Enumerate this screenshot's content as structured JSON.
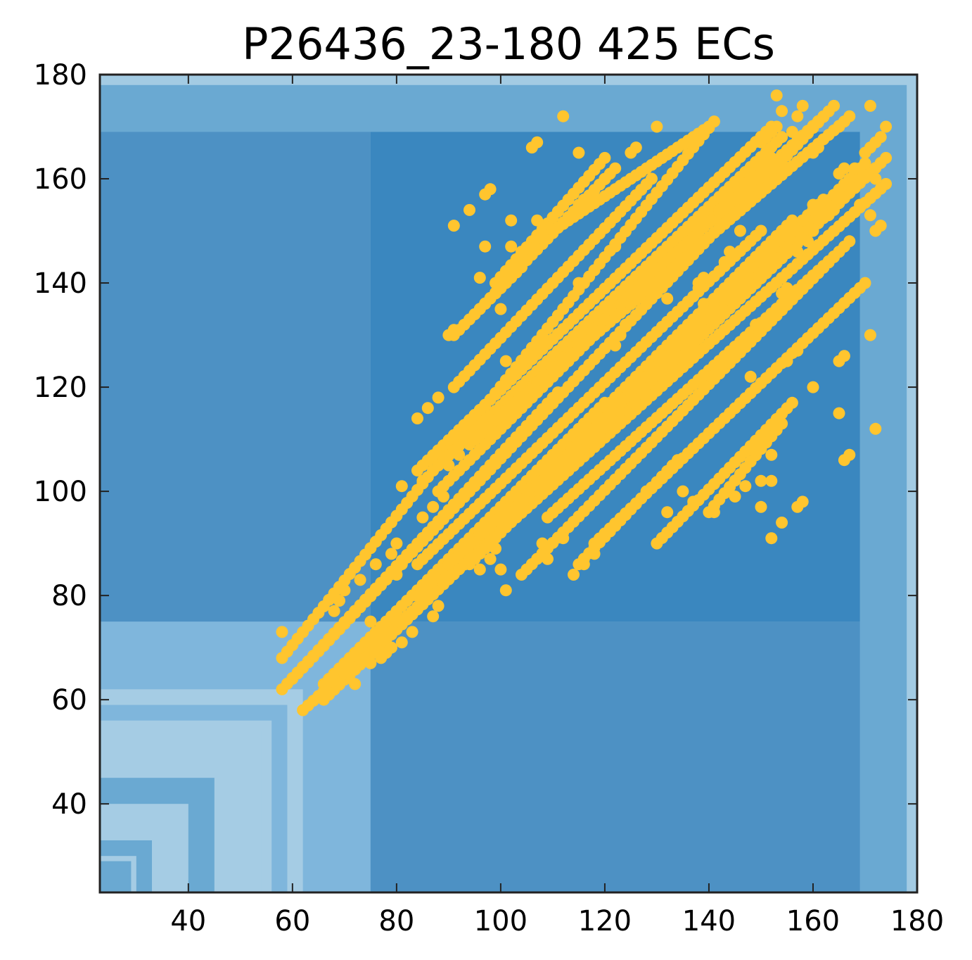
{
  "chart_data": {
    "type": "scatter",
    "title": "P26436_23-180 425 ECs",
    "xlabel": "",
    "ylabel": "",
    "xlim": [
      23,
      180
    ],
    "ylim": [
      23,
      180
    ],
    "xticks": [
      40,
      60,
      80,
      100,
      120,
      140,
      160,
      180
    ],
    "yticks": [
      40,
      60,
      80,
      100,
      120,
      140,
      160,
      180
    ],
    "grid": false,
    "colors": {
      "points": "#ffc52e",
      "frame": "#222222"
    },
    "domains_background": {
      "description_free": true,
      "nested_squares": [
        {
          "lo": 23,
          "hi": 180,
          "color": "#a3cbe3"
        },
        {
          "lo": 23,
          "hi": 178,
          "color": "#6aa9d2"
        },
        {
          "lo": 23,
          "hi": 169,
          "color": "#6aa9d2"
        },
        {
          "lo": 23,
          "hi": 75,
          "color": "#7fb6dc"
        },
        {
          "lo": 23,
          "hi": 62,
          "color": "#a5cce4"
        },
        {
          "lo": 23,
          "hi": 59,
          "color": "#7fb6dc"
        },
        {
          "lo": 23,
          "hi": 56,
          "color": "#a5cce4"
        },
        {
          "lo": 23,
          "hi": 54,
          "color": "#a5cce4"
        },
        {
          "lo": 23,
          "hi": 45,
          "color": "#6aa9d2"
        },
        {
          "lo": 23,
          "hi": 40,
          "color": "#a5cce4"
        },
        {
          "lo": 23,
          "hi": 33,
          "color": "#6aa9d2"
        },
        {
          "lo": 23,
          "hi": 30,
          "color": "#a5cce4"
        },
        {
          "lo": 23,
          "hi": 29,
          "color": "#6aa9d2"
        }
      ],
      "blocks": [
        {
          "x": [
            75,
            169
          ],
          "y": [
            75,
            169
          ],
          "color": "#3a87bf"
        },
        {
          "x": [
            23,
            75
          ],
          "y": [
            75,
            169
          ],
          "color": "#4d91c4"
        },
        {
          "x": [
            75,
            169
          ],
          "y": [
            23,
            75
          ],
          "color": "#4d91c4"
        }
      ]
    },
    "lines": [
      {
        "x0": 58,
        "y0": 68,
        "x1": 141,
        "y1": 171
      },
      {
        "x0": 60,
        "y0": 64,
        "x1": 164,
        "y1": 174
      },
      {
        "x0": 66,
        "y0": 60,
        "x1": 174,
        "y1": 164
      },
      {
        "x0": 58,
        "y0": 62,
        "x1": 111,
        "y1": 119
      },
      {
        "x0": 62,
        "y0": 58,
        "x1": 174,
        "y1": 159
      },
      {
        "x0": 66,
        "y0": 63,
        "x1": 120,
        "y1": 117
      },
      {
        "x0": 84,
        "y0": 104,
        "x1": 152,
        "y1": 170
      },
      {
        "x0": 87,
        "y0": 104,
        "x1": 154,
        "y1": 168
      },
      {
        "x0": 88,
        "y0": 100,
        "x1": 152,
        "y1": 164
      },
      {
        "x0": 94,
        "y0": 109,
        "x1": 162,
        "y1": 172
      },
      {
        "x0": 97,
        "y0": 112,
        "x1": 166,
        "y1": 171
      },
      {
        "x0": 91,
        "y0": 120,
        "x1": 129,
        "y1": 160
      },
      {
        "x0": 91,
        "y0": 130,
        "x1": 104,
        "y1": 143
      },
      {
        "x0": 95,
        "y0": 134,
        "x1": 122,
        "y1": 162
      },
      {
        "x0": 99,
        "y0": 140,
        "x1": 120,
        "y1": 164
      },
      {
        "x0": 104,
        "y0": 146,
        "x1": 140,
        "y1": 170
      },
      {
        "x0": 84,
        "y0": 80,
        "x1": 156,
        "y1": 152
      },
      {
        "x0": 84,
        "y0": 86,
        "x1": 150,
        "y1": 150
      },
      {
        "x0": 90,
        "y0": 86,
        "x1": 167,
        "y1": 158
      },
      {
        "x0": 94,
        "y0": 86,
        "x1": 170,
        "y1": 163
      },
      {
        "x0": 100,
        "y0": 94,
        "x1": 162,
        "y1": 156
      },
      {
        "x0": 104,
        "y0": 84,
        "x1": 167,
        "y1": 148
      },
      {
        "x0": 109,
        "y0": 95,
        "x1": 165,
        "y1": 146
      },
      {
        "x0": 118,
        "y0": 90,
        "x1": 170,
        "y1": 140
      },
      {
        "x0": 130,
        "y0": 90,
        "x1": 156,
        "y1": 117
      },
      {
        "x0": 115,
        "y0": 86,
        "x1": 134,
        "y1": 106
      },
      {
        "x0": 140,
        "y0": 96,
        "x1": 154,
        "y1": 113
      }
    ],
    "points": [
      [
        58,
        73
      ],
      [
        112,
        172
      ],
      [
        130,
        170
      ],
      [
        107,
        167
      ],
      [
        106,
        166
      ],
      [
        115,
        165
      ],
      [
        126,
        166
      ],
      [
        125,
        165
      ],
      [
        120,
        160
      ],
      [
        97,
        157
      ],
      [
        98,
        158
      ],
      [
        94,
        154
      ],
      [
        91,
        151
      ],
      [
        102,
        152
      ],
      [
        107,
        152
      ],
      [
        115,
        155
      ],
      [
        116,
        156
      ],
      [
        97,
        147
      ],
      [
        102,
        147
      ],
      [
        122,
        147
      ],
      [
        96,
        141
      ],
      [
        115,
        140
      ],
      [
        100,
        135
      ],
      [
        101,
        125
      ],
      [
        90,
        130
      ],
      [
        91,
        131
      ],
      [
        84,
        114
      ],
      [
        86,
        116
      ],
      [
        88,
        118
      ],
      [
        81,
        101
      ],
      [
        85,
        102
      ],
      [
        80,
        90
      ],
      [
        79,
        88
      ],
      [
        76,
        86
      ],
      [
        75,
        75
      ],
      [
        80,
        75
      ],
      [
        70,
        81
      ],
      [
        73,
        83
      ],
      [
        68,
        77
      ],
      [
        69,
        79
      ],
      [
        70,
        65
      ],
      [
        72,
        63
      ],
      [
        75,
        67
      ],
      [
        77,
        68
      ],
      [
        78,
        69
      ],
      [
        79,
        70
      ],
      [
        81,
        71
      ],
      [
        83,
        73
      ],
      [
        84,
        80
      ],
      [
        85,
        80
      ],
      [
        87,
        76
      ],
      [
        88,
        78
      ],
      [
        80,
        84
      ],
      [
        81,
        86
      ],
      [
        85,
        95
      ],
      [
        87,
        97
      ],
      [
        89,
        99
      ],
      [
        90,
        105
      ],
      [
        92,
        107
      ],
      [
        96,
        85
      ],
      [
        98,
        87
      ],
      [
        99,
        89
      ],
      [
        100,
        85
      ],
      [
        101,
        81
      ],
      [
        108,
        90
      ],
      [
        109,
        87
      ],
      [
        112,
        91
      ],
      [
        114,
        84
      ],
      [
        116,
        86
      ],
      [
        118,
        88
      ],
      [
        128,
        100
      ],
      [
        132,
        96
      ],
      [
        135,
        100
      ],
      [
        137,
        98
      ],
      [
        141,
        96
      ],
      [
        150,
        102
      ],
      [
        152,
        102
      ],
      [
        150,
        97
      ],
      [
        154,
        94
      ],
      [
        152,
        91
      ],
      [
        152,
        107
      ],
      [
        145,
        99
      ],
      [
        147,
        101
      ],
      [
        157,
        97
      ],
      [
        158,
        98
      ],
      [
        160,
        120
      ],
      [
        165,
        115
      ],
      [
        165,
        125
      ],
      [
        166,
        126
      ],
      [
        166,
        106
      ],
      [
        167,
        107
      ],
      [
        171,
        130
      ],
      [
        172,
        112
      ],
      [
        143,
        144
      ],
      [
        144,
        146
      ],
      [
        138,
        140
      ],
      [
        139,
        141
      ],
      [
        138,
        139
      ],
      [
        139,
        136
      ],
      [
        140,
        135
      ],
      [
        141,
        136
      ],
      [
        132,
        137
      ],
      [
        137,
        132
      ],
      [
        130,
        126
      ],
      [
        135,
        126
      ],
      [
        134,
        128
      ],
      [
        128,
        122
      ],
      [
        129,
        123
      ],
      [
        120,
        133
      ],
      [
        122,
        128
      ],
      [
        123,
        130
      ],
      [
        124,
        132
      ],
      [
        149,
        132
      ],
      [
        150,
        145
      ],
      [
        146,
        150
      ],
      [
        148,
        122
      ],
      [
        145,
        140
      ],
      [
        147,
        142
      ],
      [
        154,
        138
      ],
      [
        155,
        139
      ],
      [
        160,
        155
      ],
      [
        158,
        152
      ],
      [
        157,
        146
      ],
      [
        159,
        148
      ],
      [
        160,
        150
      ],
      [
        163,
        153
      ],
      [
        164,
        154
      ],
      [
        160,
        165
      ],
      [
        161,
        166
      ],
      [
        165,
        161
      ],
      [
        166,
        162
      ],
      [
        168,
        162
      ],
      [
        170,
        165
      ],
      [
        171,
        166
      ],
      [
        172,
        167
      ],
      [
        173,
        168
      ],
      [
        171,
        174
      ],
      [
        167,
        172
      ],
      [
        165,
        170
      ],
      [
        166,
        171
      ],
      [
        174,
        170
      ],
      [
        172,
        160
      ],
      [
        171,
        153
      ],
      [
        172,
        150
      ],
      [
        173,
        151
      ],
      [
        169,
        155
      ],
      [
        157,
        127
      ],
      [
        155,
        125
      ],
      [
        150,
        167
      ],
      [
        151,
        168
      ],
      [
        152,
        169
      ],
      [
        153,
        170
      ],
      [
        156,
        169
      ],
      [
        154,
        173
      ],
      [
        158,
        174
      ],
      [
        157,
        172
      ],
      [
        153,
        176
      ]
    ]
  }
}
